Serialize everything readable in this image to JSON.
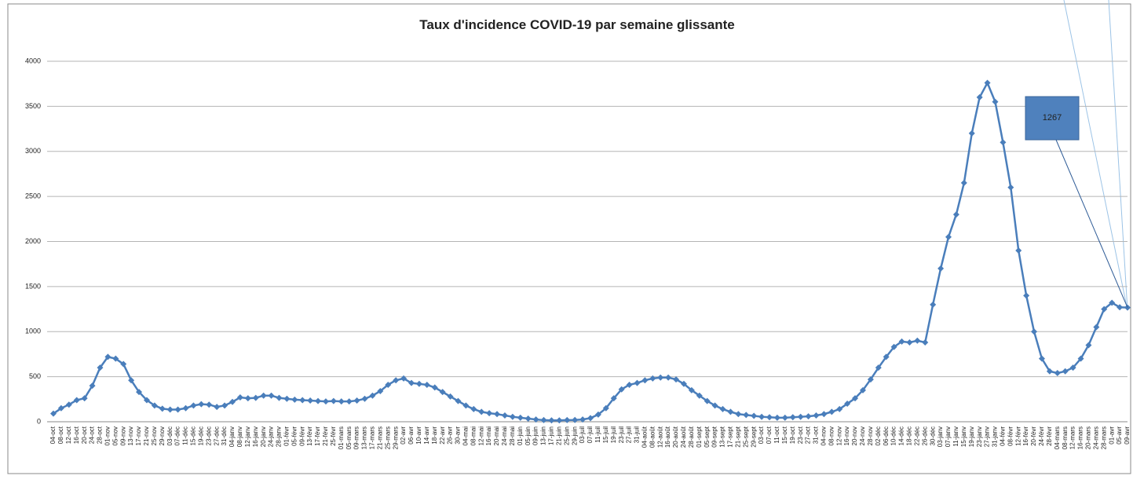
{
  "chart_data": {
    "type": "line",
    "title": "Taux d'incidence COVID-19 par semaine glissante",
    "categories": [
      "04-oct",
      "08-oct",
      "12-oct",
      "16-oct",
      "20-oct",
      "24-oct",
      "28-oct",
      "01-nov",
      "05-nov",
      "09-nov",
      "13-nov",
      "17-nov",
      "21-nov",
      "25-nov",
      "29-nov",
      "03-déc",
      "07-déc",
      "11-déc",
      "15-déc",
      "19-déc",
      "23-déc",
      "27-déc",
      "31-déc",
      "04-janv",
      "08-janv",
      "12-janv",
      "16-janv",
      "20-janv",
      "24-janv",
      "28-janv",
      "01-févr",
      "05-févr",
      "09-févr",
      "13-févr",
      "17-févr",
      "21-févr",
      "25-févr",
      "01-mars",
      "05-mars",
      "09-mars",
      "13-mars",
      "17-mars",
      "21-mars",
      "25-mars",
      "29-mars",
      "02-avr",
      "06-avr",
      "10-avr",
      "14-avr",
      "18-avr",
      "22-avr",
      "26-avr",
      "30-avr",
      "04-mai",
      "08-mai",
      "12-mai",
      "16-mai",
      "20-mai",
      "24-mai",
      "28-mai",
      "01-juin",
      "05-juin",
      "09-juin",
      "13-juin",
      "17-juin",
      "21-juin",
      "25-juin",
      "29-juin",
      "03-juil",
      "07-juil",
      "11-juil",
      "15-juil",
      "19-juil",
      "23-juil",
      "27-juil",
      "31-juil",
      "04-août",
      "08-août",
      "12-août",
      "16-août",
      "20-août",
      "24-août",
      "28-août",
      "01-sept",
      "05-sept",
      "09-sept",
      "13-sept",
      "17-sept",
      "21-sept",
      "25-sept",
      "29-sept",
      "03-oct",
      "07-oct",
      "11-oct",
      "15-oct",
      "19-oct",
      "23-oct",
      "27-oct",
      "31-oct",
      "04-nov",
      "08-nov",
      "12-nov",
      "16-nov",
      "20-nov",
      "24-nov",
      "28-nov",
      "02-déc",
      "06-déc",
      "10-déc",
      "14-déc",
      "18-déc",
      "22-déc",
      "26-déc",
      "30-déc",
      "03-janv",
      "07-janv",
      "11-janv",
      "15-janv",
      "19-janv",
      "23-janv",
      "27-janv",
      "31-janv",
      "04-févr",
      "08-févr",
      "12-févr",
      "16-févr",
      "20-févr",
      "24-févr",
      "28-févr",
      "04-mars",
      "08-mars",
      "12-mars",
      "16-mars",
      "20-mars",
      "24-mars",
      "28-mars",
      "01-avr",
      "05-avr",
      "09-avr"
    ],
    "series": [
      {
        "color": "#4a7ebb",
        "values": [
          90,
          150,
          190,
          240,
          260,
          400,
          600,
          720,
          700,
          640,
          460,
          330,
          240,
          180,
          145,
          135,
          135,
          150,
          180,
          195,
          190,
          165,
          180,
          220,
          270,
          260,
          265,
          290,
          290,
          265,
          255,
          245,
          240,
          235,
          230,
          225,
          230,
          225,
          225,
          235,
          255,
          290,
          340,
          410,
          460,
          480,
          430,
          420,
          410,
          380,
          330,
          280,
          230,
          180,
          140,
          110,
          95,
          85,
          70,
          55,
          45,
          35,
          25,
          18,
          15,
          15,
          18,
          20,
          25,
          40,
          80,
          150,
          260,
          360,
          410,
          430,
          460,
          480,
          490,
          490,
          470,
          420,
          350,
          290,
          230,
          180,
          140,
          110,
          85,
          75,
          65,
          55,
          50,
          45,
          45,
          50,
          55,
          60,
          70,
          85,
          110,
          140,
          200,
          260,
          350,
          470,
          600,
          720,
          830,
          890,
          880,
          900,
          880,
          1300,
          1700,
          2050,
          2300,
          2650,
          3200,
          3600,
          3760,
          3550,
          3100,
          2600,
          1900,
          1400,
          1000,
          700,
          560,
          540,
          560,
          600,
          700,
          850,
          1050,
          1250,
          1320,
          1270,
          1267
        ]
      }
    ],
    "annotation": "1267",
    "ylim": [
      0,
      4000
    ],
    "yticks": [
      0,
      500,
      1000,
      1500,
      2000,
      2500,
      3000,
      3500,
      4000
    ],
    "grid": true
  }
}
